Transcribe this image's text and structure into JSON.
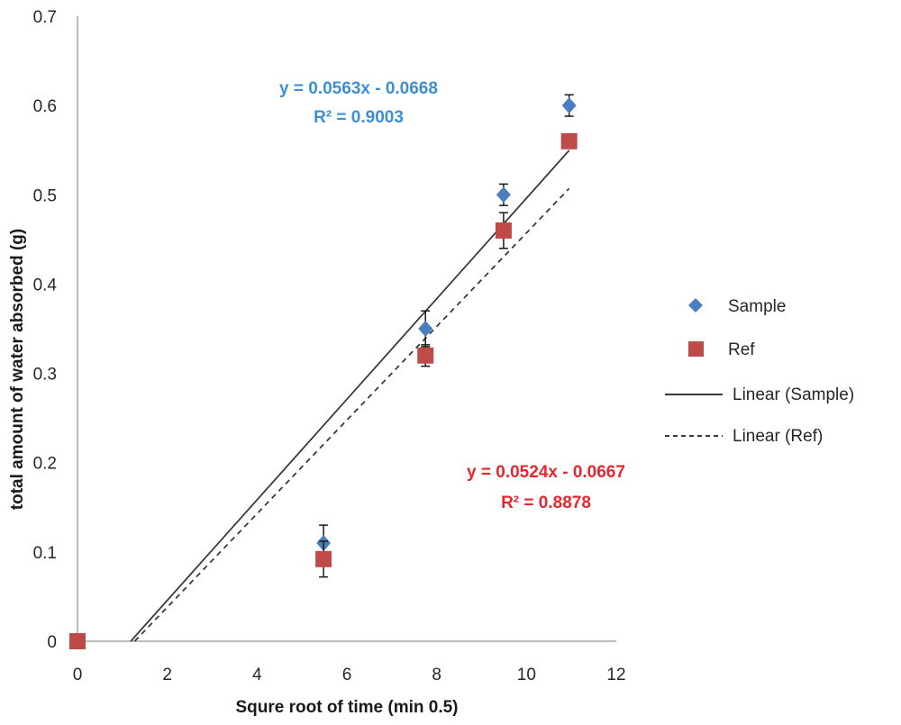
{
  "chart_data": {
    "type": "scatter",
    "xlabel": "Squre root  of time (min 0.5)",
    "ylabel": "total amount of water absorbed (g)",
    "xlim": [
      0,
      12
    ],
    "ylim": [
      0,
      0.7
    ],
    "x_ticks": [
      "0",
      "2",
      "4",
      "6",
      "8",
      "10",
      "12"
    ],
    "y_ticks": [
      "0",
      "0.1",
      "0.2",
      "0.3",
      "0.4",
      "0.5",
      "0.6",
      "0.7"
    ],
    "grid": false,
    "legend_position": "right",
    "series": [
      {
        "name": "Sample",
        "marker": "diamond",
        "color": "#4a7ebf",
        "points": [
          {
            "x": 0,
            "y": 0,
            "err": 0
          },
          {
            "x": 5.48,
            "y": 0.11,
            "err": 0.02
          },
          {
            "x": 7.75,
            "y": 0.35,
            "err": 0.02
          },
          {
            "x": 9.49,
            "y": 0.5,
            "err": 0.012
          },
          {
            "x": 10.95,
            "y": 0.6,
            "err": 0.012
          }
        ]
      },
      {
        "name": "Ref",
        "marker": "square",
        "color": "#be4b48",
        "points": [
          {
            "x": 0,
            "y": 0,
            "err": 0
          },
          {
            "x": 5.48,
            "y": 0.092,
            "err": 0.02
          },
          {
            "x": 7.75,
            "y": 0.32,
            "err": 0.012
          },
          {
            "x": 9.49,
            "y": 0.46,
            "err": 0.02
          },
          {
            "x": 10.95,
            "y": 0.56,
            "err": 0.008
          }
        ]
      }
    ],
    "trendlines": [
      {
        "name": "Linear (Sample)",
        "slope": 0.0563,
        "intercept": -0.0668,
        "style": "solid",
        "color": "#3a3a3a"
      },
      {
        "name": "Linear (Ref)",
        "slope": 0.0524,
        "intercept": -0.0667,
        "style": "dashed",
        "color": "#3a3a3a"
      }
    ],
    "annotations": {
      "sample_equation": "y = 0.0563x - 0.0668",
      "sample_r2": "R² = 0.9003",
      "sample_color": "#3c8fd6",
      "ref_equation": "y = 0.0524x - 0.0667",
      "ref_r2": "R² = 0.8878",
      "ref_color": "#e8262e"
    },
    "legend": [
      "Sample",
      "Ref",
      "Linear (Sample)",
      "Linear (Ref)"
    ]
  }
}
